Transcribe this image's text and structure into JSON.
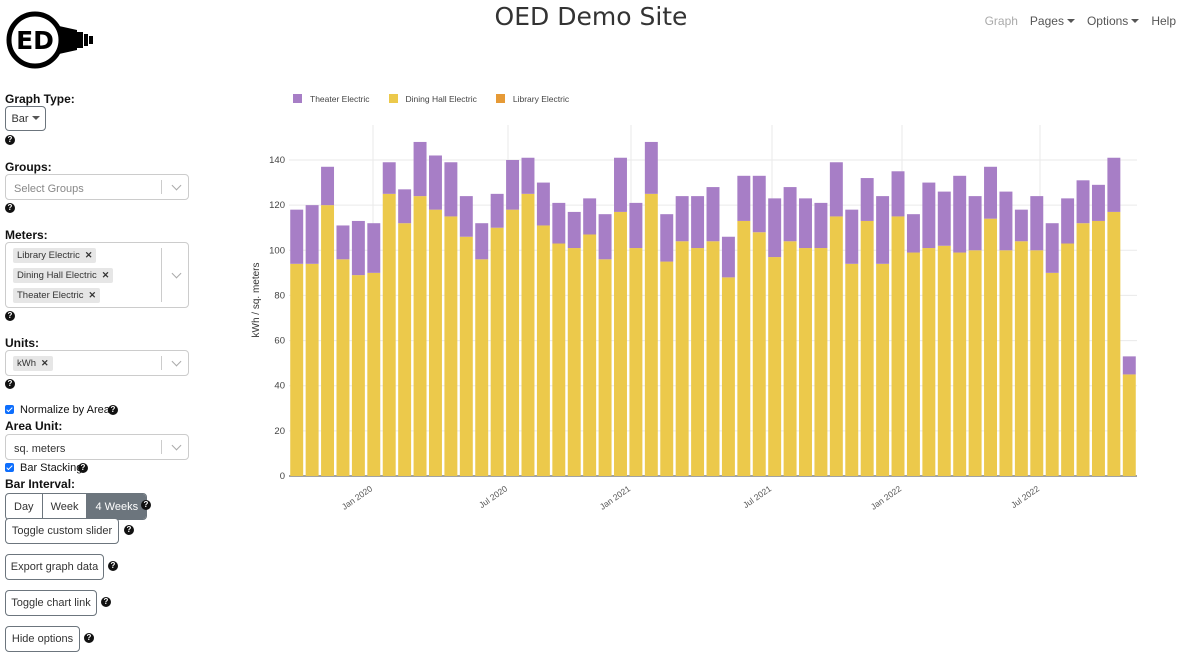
{
  "header": {
    "logo_text": "ED",
    "title": "OED Demo Site",
    "nav": [
      {
        "label": "Graph",
        "muted": true,
        "caret": false
      },
      {
        "label": "Pages",
        "muted": false,
        "caret": true
      },
      {
        "label": "Options",
        "muted": false,
        "caret": true
      },
      {
        "label": "Help",
        "muted": false,
        "caret": false
      }
    ]
  },
  "sidebar": {
    "graph_type_label": "Graph Type:",
    "graph_type_value": "Bar",
    "groups_label": "Groups:",
    "groups_placeholder": "Select Groups",
    "meters_label": "Meters:",
    "meters_selected": [
      "Library Electric",
      "Dining Hall Electric",
      "Theater Electric"
    ],
    "units_label": "Units:",
    "units_selected": [
      "kWh"
    ],
    "normalize_label": "Normalize by Area",
    "normalize_checked": true,
    "area_unit_label": "Area Unit:",
    "area_unit_value": "sq. meters",
    "bar_stacking_label": "Bar Stacking",
    "bar_stacking_checked": true,
    "bar_interval_label": "Bar Interval:",
    "bar_interval_options": [
      "Day",
      "Week",
      "4 Weeks"
    ],
    "bar_interval_selected": "4 Weeks",
    "toggle_slider": "Toggle custom slider",
    "export": "Export graph data",
    "toggle_link": "Toggle chart link",
    "hide_options": "Hide options",
    "help_glyph": "?"
  },
  "chart_data": {
    "type": "bar",
    "stacked": true,
    "ylabel": "kWh / sq. meters",
    "ylim": [
      0,
      150
    ],
    "yticks": [
      0,
      20,
      40,
      60,
      80,
      100,
      120,
      140
    ],
    "x_tick_labels": [
      "Jan 2020",
      "Jul 2020",
      "Jan 2021",
      "Jul 2021",
      "Jan 2022",
      "Jul 2022"
    ],
    "grid": true,
    "legend_position": "top-left",
    "series": [
      {
        "name": "Theater Electric",
        "color": "#a77ec6",
        "values": [
          24,
          26,
          17,
          15,
          24,
          22,
          14,
          15,
          24,
          24,
          24,
          18,
          16,
          15,
          22,
          16,
          19,
          18,
          16,
          16,
          20,
          24,
          20,
          23,
          21,
          20,
          23,
          24,
          18,
          20,
          25,
          26,
          24,
          22,
          20,
          24,
          24,
          19,
          30,
          20,
          17,
          29,
          24,
          34,
          24,
          23,
          26,
          14,
          24,
          22,
          20,
          19,
          16,
          24,
          8
        ]
      },
      {
        "name": "Dining Hall Electric",
        "color": "#ecc94b",
        "values": [
          94,
          94,
          120,
          96,
          89,
          90,
          125,
          112,
          124,
          118,
          115,
          106,
          96,
          110,
          118,
          125,
          111,
          103,
          101,
          107,
          96,
          117,
          101,
          125,
          95,
          104,
          101,
          104,
          88,
          113,
          108,
          97,
          104,
          101,
          101,
          115,
          94,
          113,
          94,
          115,
          99,
          101,
          102,
          99,
          100,
          114,
          100,
          104,
          100,
          90,
          103,
          112,
          113,
          117,
          45
        ]
      },
      {
        "name": "Library Electric",
        "color": "#e69a36",
        "values": [
          0,
          0,
          0,
          0,
          0,
          0,
          0,
          0,
          0,
          0,
          0,
          0,
          0,
          0,
          0,
          0,
          0,
          0,
          0,
          0,
          0,
          0,
          0,
          0,
          0,
          0,
          0,
          0,
          0,
          0,
          0,
          0,
          0,
          0,
          0,
          0,
          0,
          0,
          0,
          0,
          0,
          0,
          0,
          0,
          0,
          0,
          0,
          0,
          0,
          0,
          0,
          0,
          0,
          0,
          0
        ]
      }
    ]
  }
}
